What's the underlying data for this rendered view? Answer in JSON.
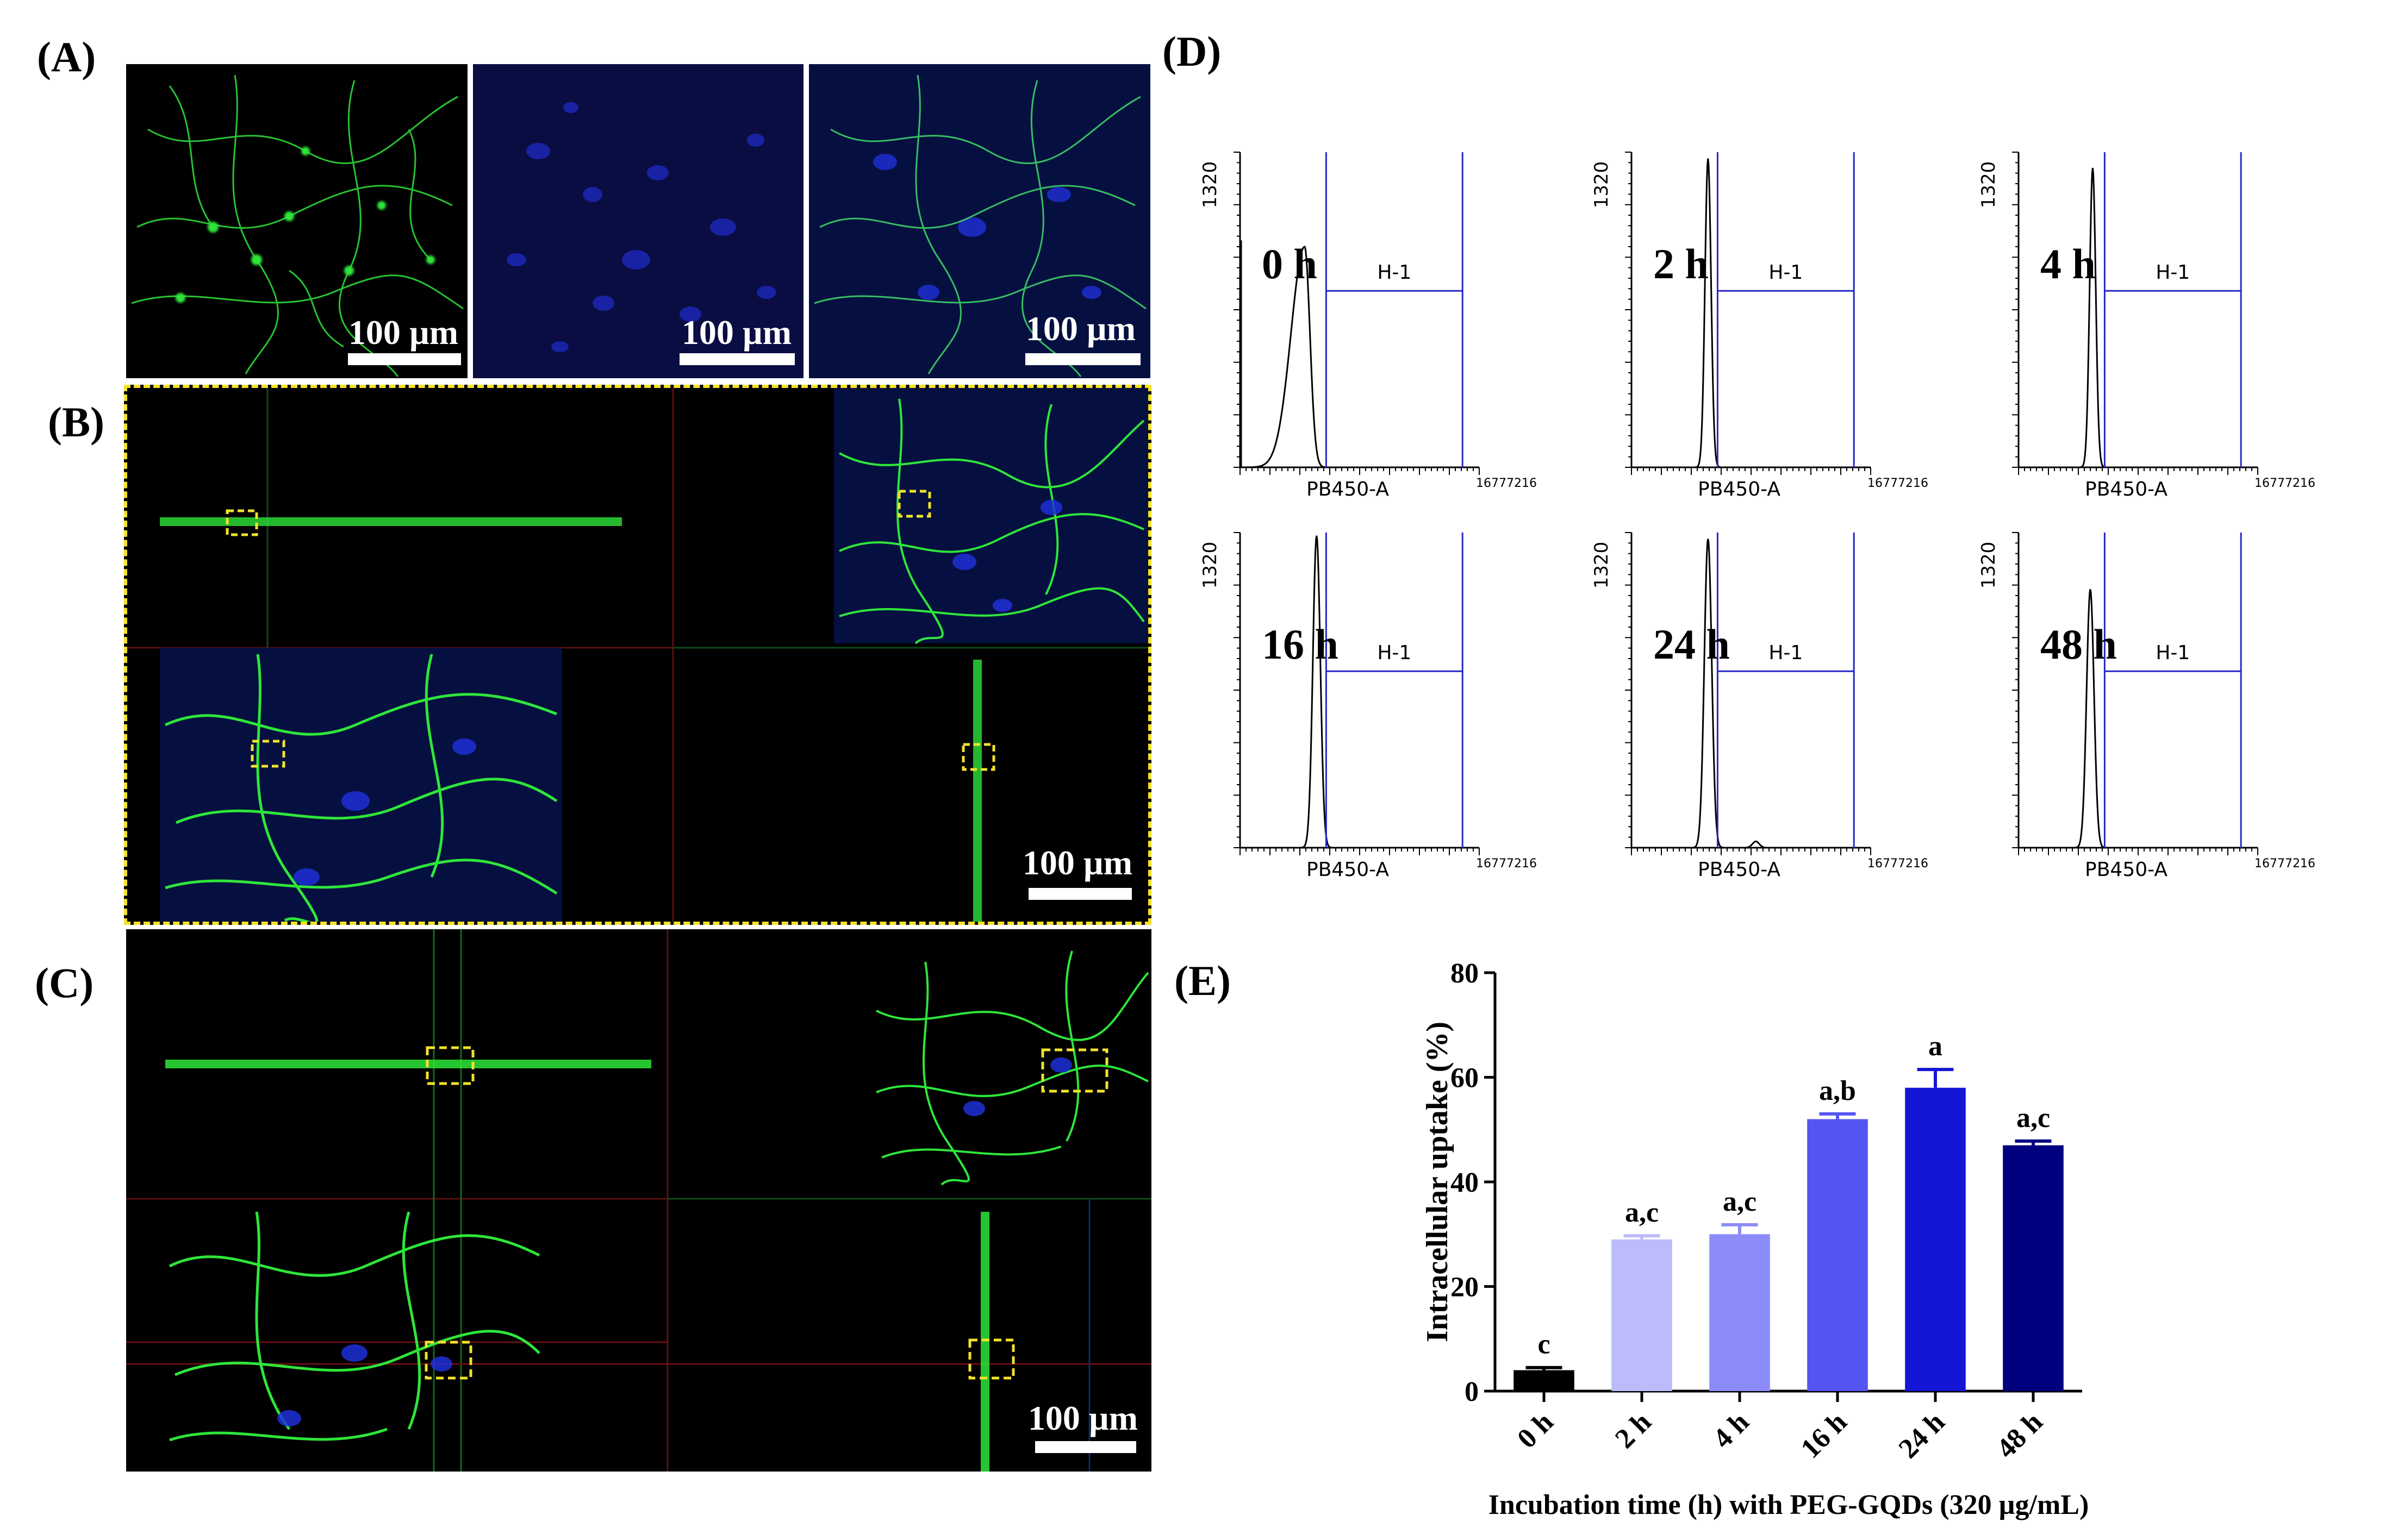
{
  "panel_labels": {
    "A": "(A)",
    "B": "(B)",
    "C": "(C)",
    "D": "(D)",
    "E": "(E)"
  },
  "scale_bar_label": "100 µm",
  "colors": {
    "actin": "#2ee63a",
    "nucleus": "#1f2fd8",
    "roi_box": "#f2e22a",
    "gate": "#2828c8",
    "frame_B": "#f2e22a"
  },
  "flow": {
    "y_tick_label": "1320",
    "x_axis_label": "PB450-A",
    "x_max_label": "16777216",
    "gate_label": "H-1",
    "plots": [
      {
        "time": "0 h"
      },
      {
        "time": "2 h"
      },
      {
        "time": "4 h"
      },
      {
        "time": "16 h"
      },
      {
        "time": "24 h"
      },
      {
        "time": "48 h"
      }
    ]
  },
  "chart_data": {
    "type": "bar",
    "categories": [
      "0 h",
      "2 h",
      "4 h",
      "16 h",
      "24 h",
      "48 h"
    ],
    "values": [
      4,
      29,
      30,
      52,
      58,
      47
    ],
    "errors": [
      0.5,
      0.7,
      1.8,
      1.0,
      3.5,
      0.8
    ],
    "letters": [
      "c",
      "a,c",
      "a,c",
      "a,b",
      "a",
      "a,c"
    ],
    "colors": [
      "#000000",
      "#bcbcfb",
      "#8b8bfa",
      "#5454f2",
      "#1515d6",
      "#00007e"
    ],
    "ylabel": "Intracellular uptake (%)",
    "xlabel": "Incubation time (h) with PEG-GQDs (320 µg/mL)",
    "ylim": [
      0,
      80
    ],
    "yticks": [
      0,
      20,
      40,
      60,
      80
    ]
  }
}
